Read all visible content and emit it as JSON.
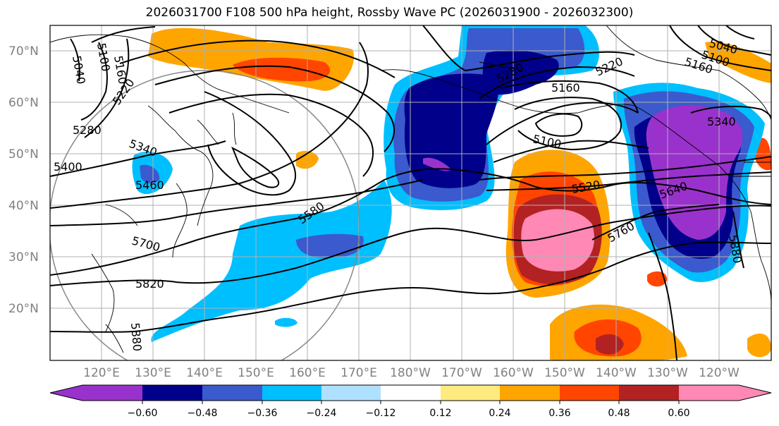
{
  "figure": {
    "title": "2026031700 F108 500 hPa height, Rossby Wave PC (2026031900 - 2026032300)"
  },
  "map": {
    "lat_labels": [
      "70°N",
      "60°N",
      "50°N",
      "40°N",
      "30°N",
      "20°N"
    ],
    "lon_labels": [
      "120°E",
      "130°E",
      "140°E",
      "150°E",
      "160°E",
      "170°E",
      "180°W",
      "170°W",
      "160°W",
      "150°W",
      "140°W",
      "130°W",
      "120°W"
    ],
    "height_contour_labels": [
      "5040",
      "5100",
      "5160",
      "5220",
      "5280",
      "5340",
      "5400",
      "5460",
      "5580",
      "5700",
      "5820",
      "5880",
      "5280",
      "5160",
      "5220",
      "5100",
      "5520",
      "5640",
      "5760",
      "5340",
      "5040",
      "5100",
      "5160",
      "5880"
    ]
  },
  "colorbar": {
    "ticks": [
      "−0.60",
      "−0.48",
      "−0.36",
      "−0.24",
      "−0.12",
      "0.12",
      "0.24",
      "0.36",
      "0.48",
      "0.60"
    ],
    "colors": [
      "#9932cc",
      "#00008b",
      "#3a5acd",
      "#00bfff",
      "#b0e0ff",
      "#ffffff",
      "#ffea80",
      "#ffa500",
      "#ff4500",
      "#b22222",
      "#ff88b4"
    ]
  },
  "chart_data": {
    "type": "heatmap",
    "title": "2026031700 F108 500 hPa height, Rossby Wave PC (2026031900 - 2026032300)",
    "xlabel": "",
    "ylabel": "",
    "color_levels": [
      -0.6,
      -0.48,
      -0.36,
      -0.24,
      -0.12,
      0.12,
      0.24,
      0.36,
      0.48,
      0.6
    ],
    "contour_levels_m": [
      5040,
      5100,
      5160,
      5220,
      5280,
      5340,
      5400,
      5460,
      5520,
      5580,
      5640,
      5700,
      5760,
      5820,
      5880
    ]
  }
}
